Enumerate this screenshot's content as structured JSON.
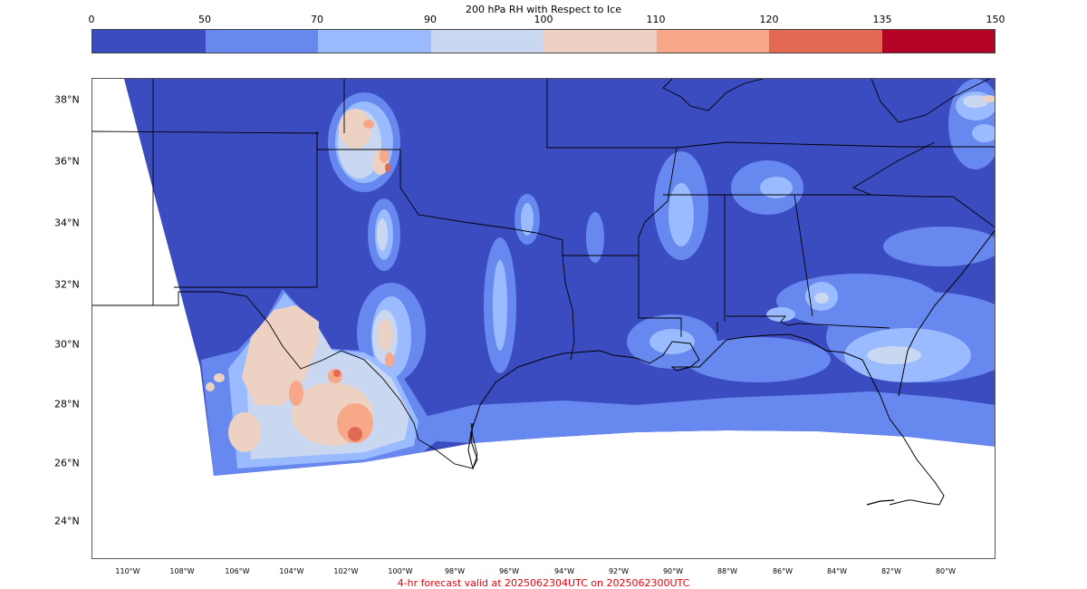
{
  "colorbar": {
    "title": "200 hPa RH with Respect to Ice",
    "ticks": [
      "0",
      "50",
      "70",
      "90",
      "100",
      "110",
      "120",
      "135",
      "150"
    ],
    "colors": [
      "#3b4cc0",
      "#6788ee",
      "#9abbff",
      "#c9d7f0",
      "#edd1c2",
      "#f7a889",
      "#e26952",
      "#b40426"
    ]
  },
  "map": {
    "lat_labels": [
      "38°N",
      "36°N",
      "34°N",
      "32°N",
      "30°N",
      "28°N",
      "26°N",
      "24°N"
    ],
    "lon_labels": [
      "110°W",
      "108°W",
      "106°W",
      "104°W",
      "102°W",
      "100°W",
      "98°W",
      "96°W",
      "94°W",
      "92°W",
      "90°W",
      "88°W",
      "86°W",
      "84°W",
      "82°W",
      "80°W"
    ]
  },
  "footer": {
    "text": "4-hr forecast valid at 2025062304UTC on 2025062300UTC"
  }
}
